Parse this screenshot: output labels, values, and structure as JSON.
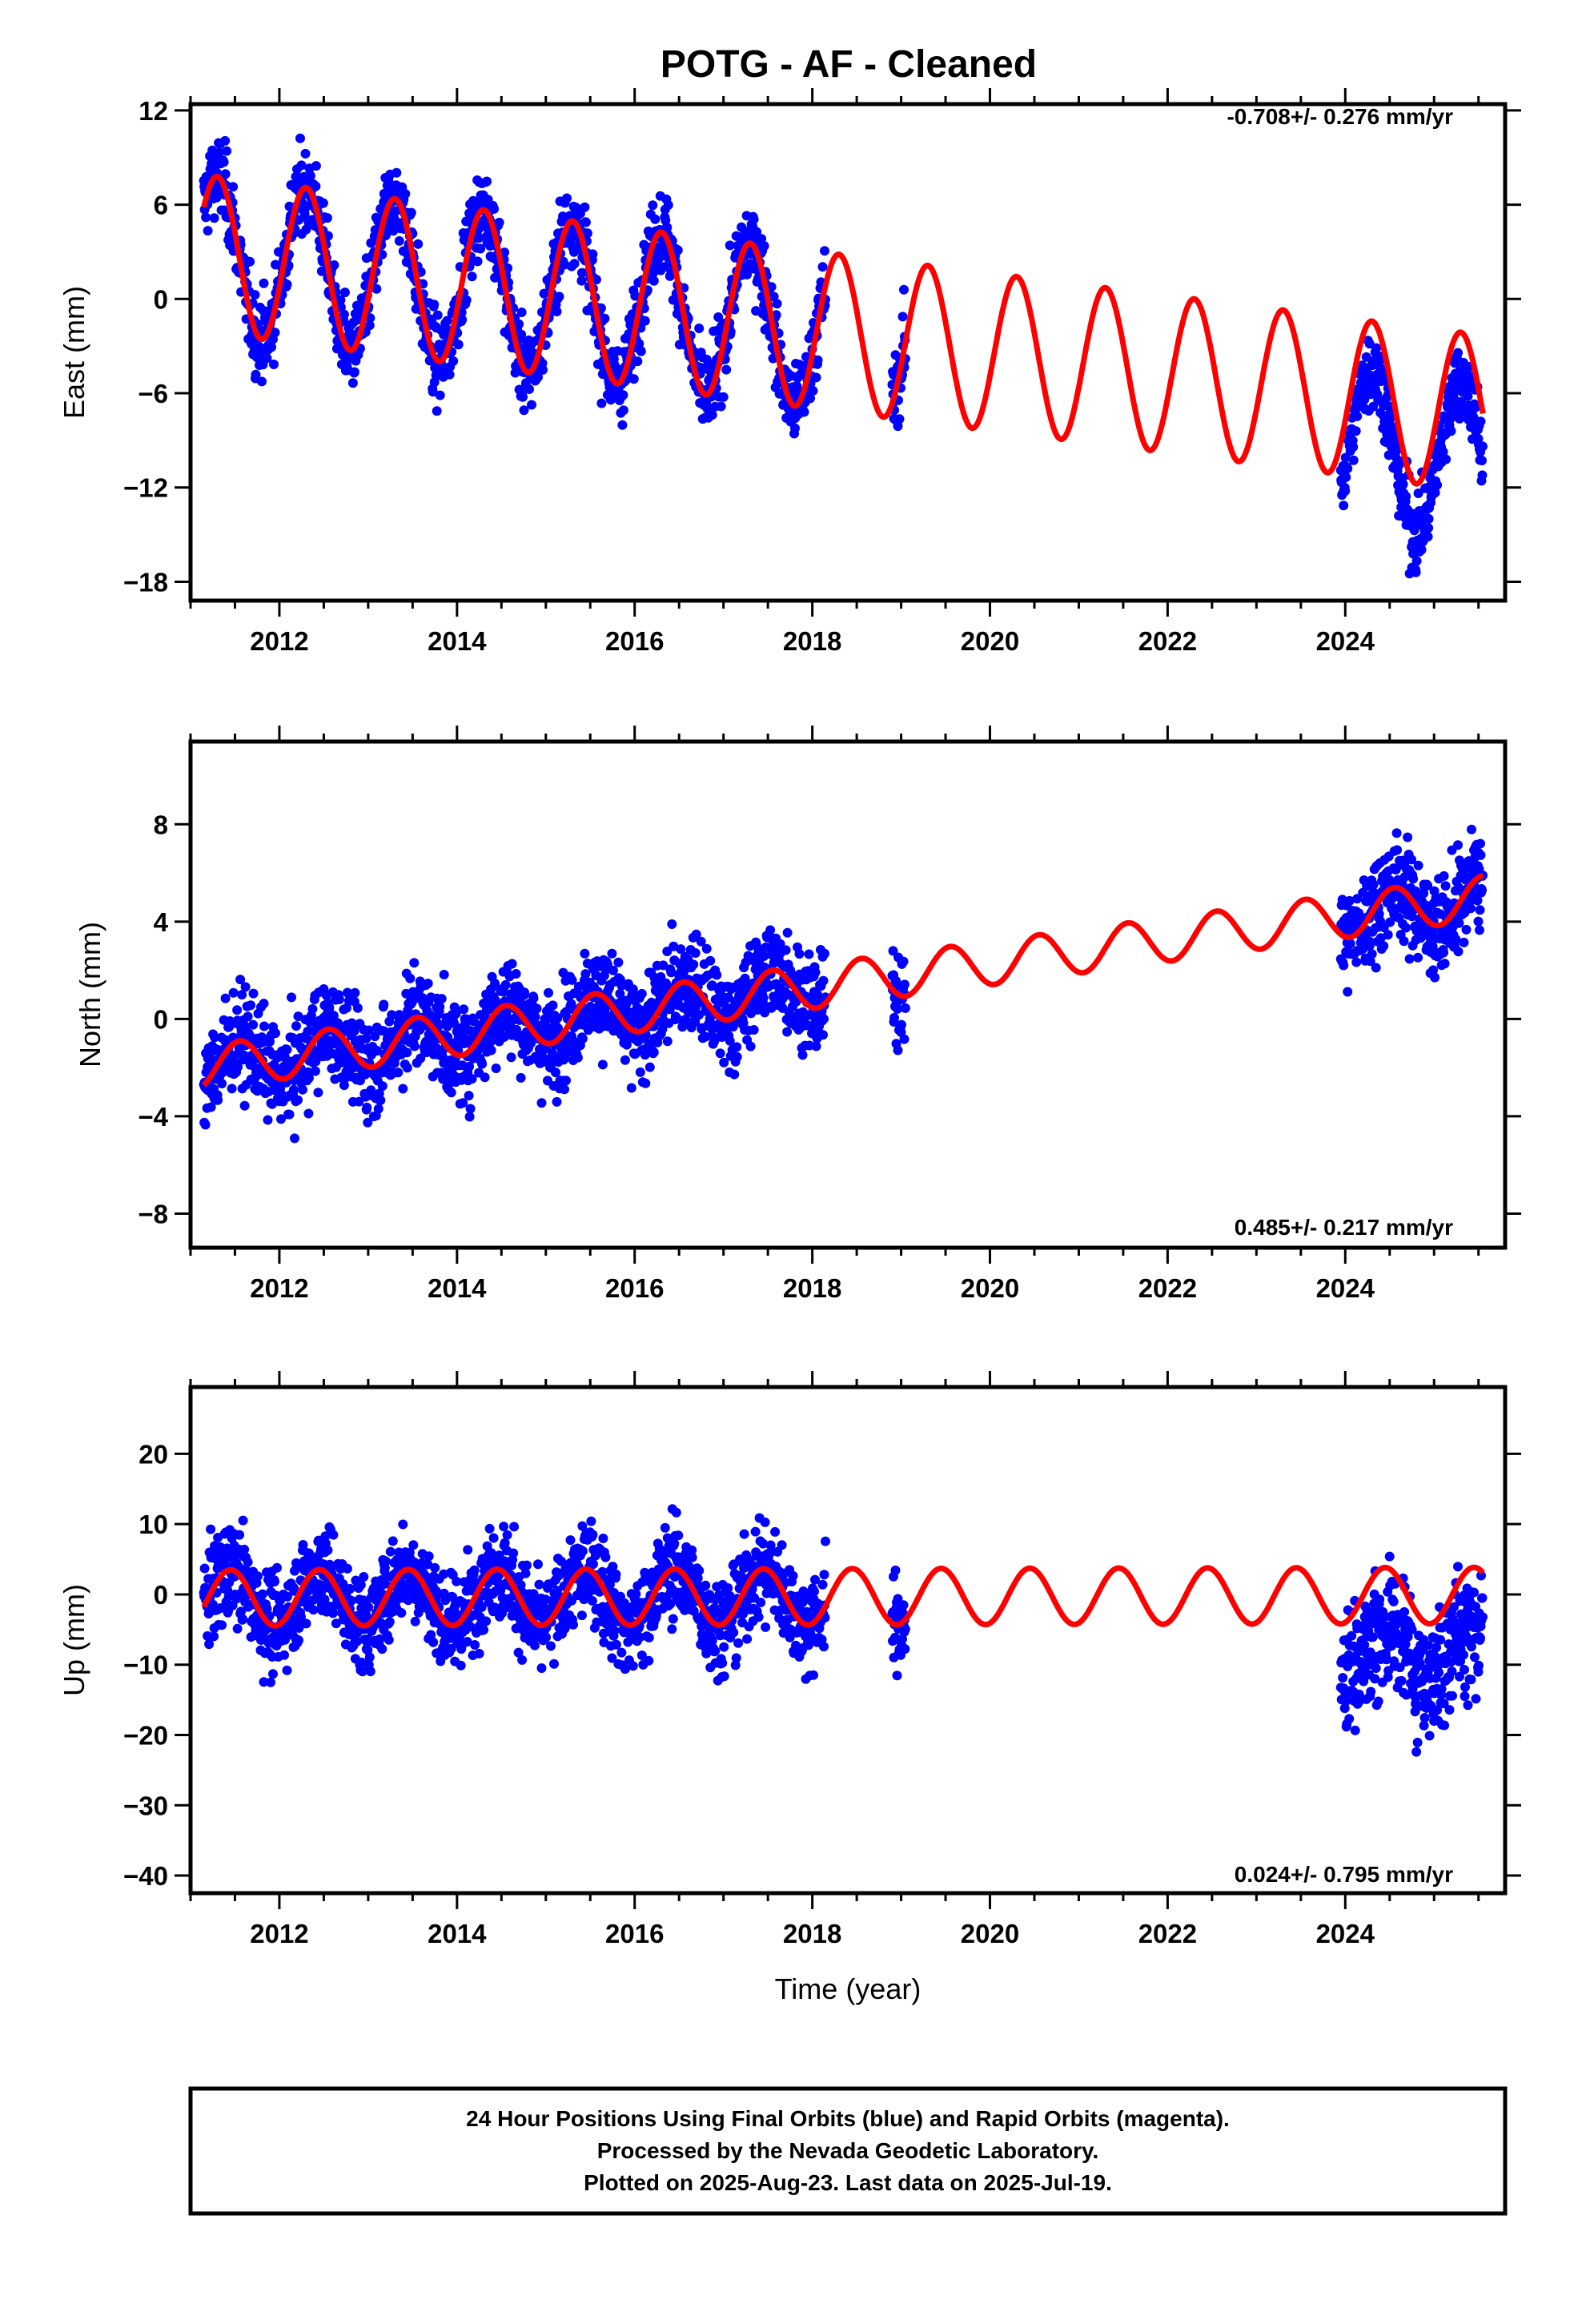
{
  "title": "POTG  - AF - Cleaned",
  "chart_data": [
    {
      "type": "scatter",
      "ylabel": "East (mm)",
      "xlabel": "",
      "xlim": [
        2011.0,
        2025.8
      ],
      "ylim": [
        -19.2,
        12.4
      ],
      "yticks": [
        12,
        6,
        0,
        -6,
        -12,
        -18
      ],
      "xticks": [
        2012,
        2014,
        2016,
        2018,
        2020,
        2022,
        2024
      ],
      "rate": "-0.708+/- 0.276 mm/yr",
      "grid": false,
      "series": [
        {
          "name": "",
          "color": "#0000ff",
          "kind": "points",
          "segments": [
            [
              2011.15,
              2018.15
            ],
            [
              2018.9,
              2019.05
            ],
            [
              2023.95,
              2025.55
            ]
          ],
          "model": {
            "offset": 2.9,
            "trend": -0.708,
            "amp": 5.0,
            "phase": 0.3
          }
        },
        {
          "name": "",
          "color": "#ff0000",
          "kind": "line",
          "range": [
            2011.15,
            2025.55
          ],
          "model": {
            "offset": 2.9,
            "trend": -0.708,
            "amp": 5.0,
            "phase": 0.3
          }
        }
      ]
    },
    {
      "type": "scatter",
      "ylabel": "North (mm)",
      "xlabel": "",
      "xlim": [
        2011.0,
        2025.8
      ],
      "ylim": [
        -9.4,
        11.4
      ],
      "yticks": [
        8,
        4,
        0,
        -4,
        -8
      ],
      "xticks": [
        2012,
        2014,
        2016,
        2018,
        2020,
        2022,
        2024
      ],
      "rate": "0.485+/- 0.217 mm/yr",
      "grid": false,
      "series": [
        {
          "name": "",
          "color": "#0000ff",
          "kind": "points",
          "segments": [
            [
              2011.15,
              2018.15
            ],
            [
              2018.9,
              2019.05
            ],
            [
              2023.95,
              2025.55
            ]
          ],
          "model": {
            "offset": -2.0,
            "trend": 0.485,
            "amp": 0.9,
            "phase": 0.55
          }
        },
        {
          "name": "",
          "color": "#ff0000",
          "kind": "line",
          "range": [
            2011.15,
            2025.55
          ],
          "model": {
            "offset": -2.0,
            "trend": 0.485,
            "amp": 0.9,
            "phase": 0.55
          }
        }
      ]
    },
    {
      "type": "scatter",
      "ylabel": "Up (mm)",
      "xlabel": "Time (year)",
      "xlim": [
        2011.0,
        2025.8
      ],
      "ylim": [
        -42.5,
        29.5
      ],
      "yticks": [
        20,
        10,
        0,
        -10,
        -20,
        -30,
        -40
      ],
      "xticks": [
        2012,
        2014,
        2016,
        2018,
        2020,
        2022,
        2024
      ],
      "rate": "0.024+/- 0.795 mm/yr",
      "grid": false,
      "series": [
        {
          "name": "",
          "color": "#0000ff",
          "kind": "points",
          "segments": [
            [
              2011.15,
              2018.15
            ],
            [
              2018.9,
              2019.05
            ],
            [
              2023.95,
              2025.55
            ]
          ],
          "model": {
            "offset": -0.5,
            "trend": 0.024,
            "amp": 4.0,
            "phase": 0.45
          }
        },
        {
          "name": "",
          "color": "#ff0000",
          "kind": "line",
          "range": [
            2011.15,
            2025.55
          ],
          "model": {
            "offset": -0.5,
            "trend": 0.024,
            "amp": 4.0,
            "phase": 0.45
          }
        }
      ]
    }
  ],
  "footer": {
    "line1": "24 Hour Positions Using Final Orbits (blue) and Rapid Orbits (magenta).",
    "line2": "Processed by the Nevada Geodetic Laboratory.",
    "line3": "Plotted on 2025-Aug-23. Last data on 2025-Jul-19."
  }
}
